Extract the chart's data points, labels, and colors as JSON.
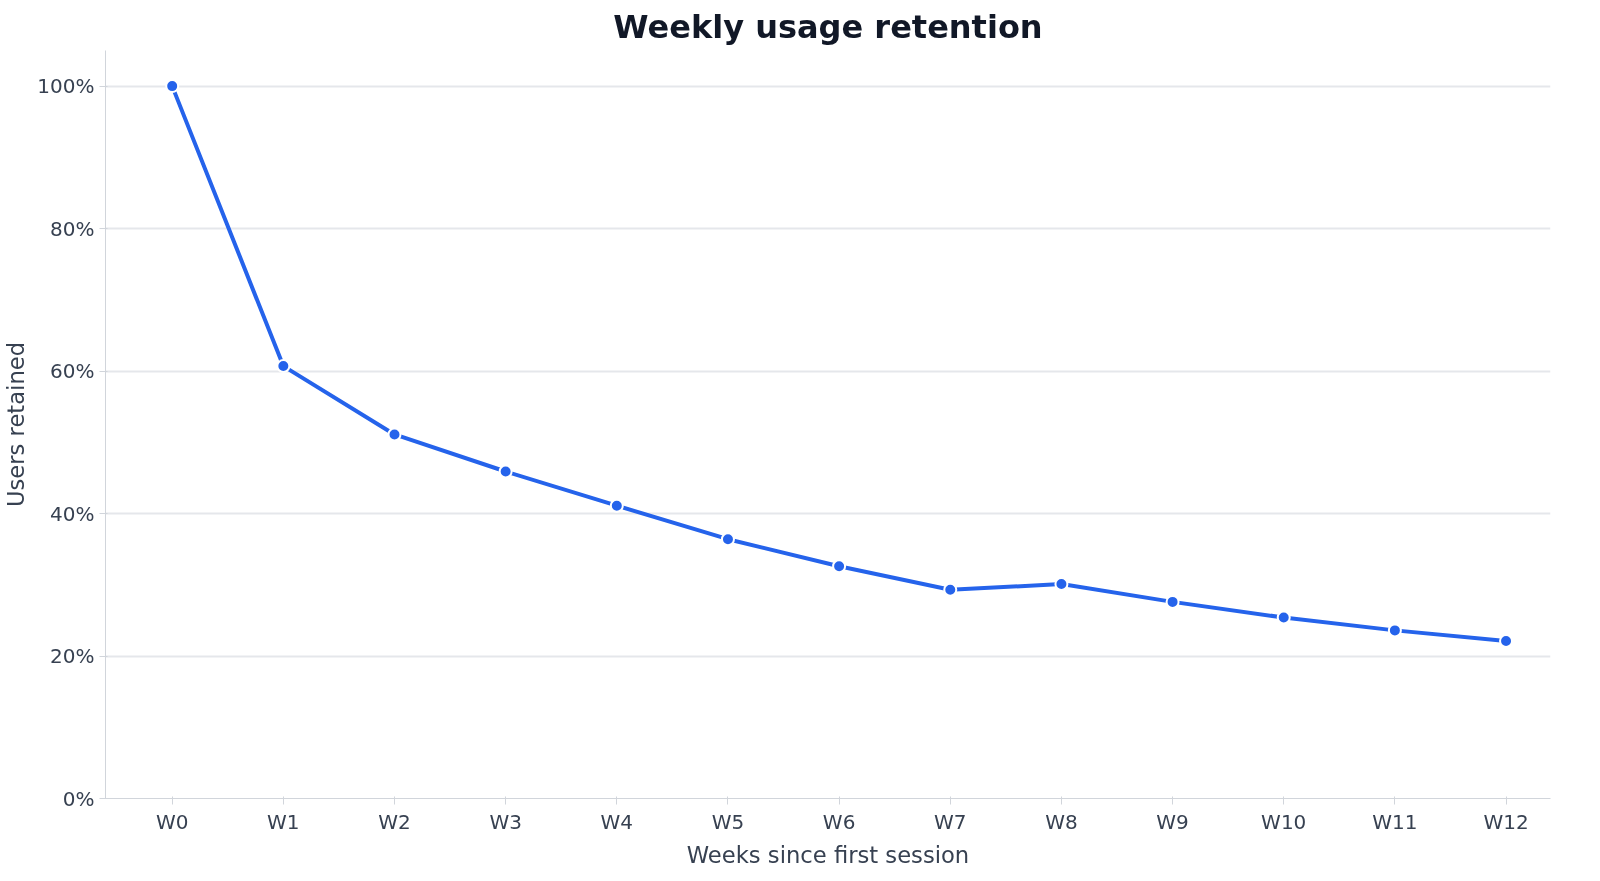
{
  "chart_data": {
    "type": "line",
    "title": "Weekly usage retention",
    "xlabel": "Weeks since first session",
    "ylabel": "Users retained",
    "categories": [
      "W0",
      "W1",
      "W2",
      "W3",
      "W4",
      "W5",
      "W6",
      "W7",
      "W8",
      "W9",
      "W10",
      "W11",
      "W12"
    ],
    "series": [
      {
        "color": "#2563eb",
        "values": [
          100,
          60.7,
          51.1,
          45.9,
          41.1,
          36.4,
          32.6,
          29.3,
          30.1,
          27.6,
          25.4,
          23.6,
          22.1
        ]
      }
    ],
    "ylim": [
      0,
      105
    ],
    "yticks": [
      {
        "value": 0,
        "label": "0%"
      },
      {
        "value": 20,
        "label": "20%"
      },
      {
        "value": 40,
        "label": "40%"
      },
      {
        "value": 60,
        "label": "60%"
      },
      {
        "value": 80,
        "label": "80%"
      },
      {
        "value": 100,
        "label": "100%"
      }
    ],
    "grid": "y",
    "marker": "circle",
    "line_style": "solid"
  }
}
